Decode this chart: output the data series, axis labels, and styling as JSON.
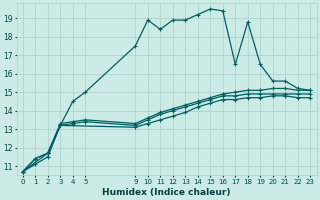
{
  "xlabel": "Humidex (Indice chaleur)",
  "bg_color": "#cceae6",
  "grid_color": "#b0d4d0",
  "line_color": "#006060",
  "xlim": [
    -0.5,
    23.5
  ],
  "ylim": [
    10.5,
    19.8
  ],
  "yticks": [
    11,
    12,
    13,
    14,
    15,
    16,
    17,
    18,
    19
  ],
  "xticks": [
    0,
    1,
    2,
    3,
    4,
    5,
    9,
    10,
    11,
    12,
    13,
    14,
    15,
    16,
    17,
    18,
    19,
    20,
    21,
    22,
    23
  ],
  "line1_x": [
    0,
    1,
    2,
    3,
    4,
    5,
    9,
    10,
    11,
    12,
    13,
    14,
    15,
    16,
    17,
    18,
    19,
    20,
    21,
    22,
    23
  ],
  "line1_y": [
    10.7,
    11.1,
    11.5,
    13.2,
    14.5,
    15.0,
    17.5,
    18.9,
    18.4,
    18.9,
    18.9,
    19.2,
    19.5,
    19.4,
    16.5,
    18.8,
    16.5,
    15.6,
    15.6,
    15.2,
    15.1
  ],
  "line2_x": [
    0,
    2,
    3,
    4,
    5,
    9,
    10,
    11,
    12,
    13,
    14,
    15,
    16,
    17,
    18,
    19,
    20,
    21,
    22,
    23
  ],
  "line2_y": [
    10.7,
    11.7,
    13.3,
    13.4,
    13.5,
    13.3,
    13.6,
    13.9,
    14.1,
    14.3,
    14.5,
    14.7,
    14.9,
    15.0,
    15.1,
    15.1,
    15.2,
    15.2,
    15.1,
    15.1
  ],
  "line3_x": [
    0,
    1,
    2,
    3,
    4,
    5,
    9,
    10,
    11,
    12,
    13,
    14,
    15,
    16,
    17,
    18,
    19,
    20,
    21,
    22,
    23
  ],
  "line3_y": [
    10.7,
    11.4,
    11.7,
    13.2,
    13.3,
    13.4,
    13.2,
    13.5,
    13.8,
    14.0,
    14.2,
    14.4,
    14.6,
    14.8,
    14.8,
    14.9,
    14.9,
    14.9,
    14.9,
    14.9,
    14.9
  ],
  "line4_x": [
    0,
    1,
    2,
    3,
    9,
    10,
    11,
    12,
    13,
    14,
    15,
    16,
    17,
    18,
    19,
    20,
    21,
    22,
    23
  ],
  "line4_y": [
    10.7,
    11.4,
    11.7,
    13.2,
    13.1,
    13.3,
    13.5,
    13.7,
    13.9,
    14.2,
    14.4,
    14.6,
    14.6,
    14.7,
    14.7,
    14.8,
    14.8,
    14.7,
    14.7
  ]
}
